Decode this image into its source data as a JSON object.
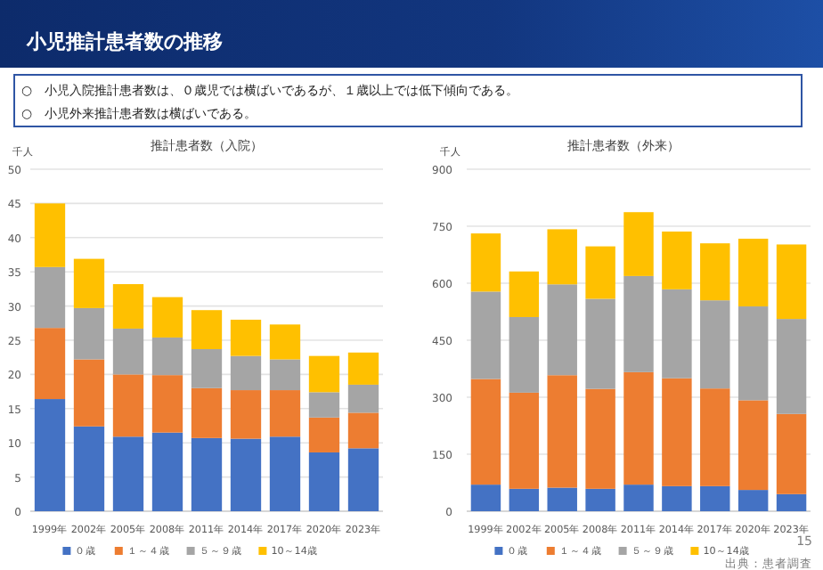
{
  "chart_data": [
    {
      "type": "bar",
      "title": "推計患者数（入院）",
      "ylabel": "千人",
      "categories": [
        "1999年",
        "2002年",
        "2005年",
        "2008年",
        "2011年",
        "2014年",
        "2017年",
        "2020年",
        "2023年"
      ],
      "stacked": true,
      "ylim": [
        0,
        50
      ],
      "yticks": [
        0,
        5,
        10,
        15,
        20,
        25,
        30,
        35,
        40,
        45,
        50
      ],
      "grid": "y",
      "legend": "bottom",
      "series": [
        {
          "name": "０歳",
          "color": "#4472c4",
          "values": [
            16.4,
            12.4,
            10.9,
            11.5,
            10.7,
            10.6,
            10.9,
            8.6,
            9.2
          ]
        },
        {
          "name": "１～４歳",
          "color": "#ed7d31",
          "values": [
            10.4,
            9.8,
            9.1,
            8.4,
            7.3,
            7.1,
            6.8,
            5.1,
            5.2
          ]
        },
        {
          "name": "５～９歳",
          "color": "#a5a5a5",
          "values": [
            8.9,
            7.5,
            6.7,
            5.5,
            5.7,
            5.0,
            4.5,
            3.7,
            4.1
          ]
        },
        {
          "name": "10～14歳",
          "color": "#ffc000",
          "values": [
            9.3,
            7.2,
            6.5,
            5.9,
            5.7,
            5.3,
            5.1,
            5.3,
            4.7
          ]
        }
      ],
      "annotations": [
        "小児推計患者数の推移",
        "○　小児入院推計患者数は、０歳児では横ばいであるが、１歳以上では低下傾向である。",
        "○　小児外来推計患者数は横ばいである。"
      ]
    },
    {
      "type": "bar",
      "title": "推計患者数（外来）",
      "ylabel": "千人",
      "categories": [
        "1999年",
        "2002年",
        "2005年",
        "2008年",
        "2011年",
        "2014年",
        "2017年",
        "2020年",
        "2023年"
      ],
      "stacked": true,
      "ylim": [
        0,
        900
      ],
      "yticks": [
        0,
        150,
        300,
        450,
        600,
        750,
        900
      ],
      "grid": "y",
      "legend": "bottom",
      "series": [
        {
          "name": "０歳",
          "color": "#4472c4",
          "values": [
            70,
            59,
            62,
            59,
            70,
            66,
            66,
            56,
            45
          ]
        },
        {
          "name": "１～４歳",
          "color": "#ed7d31",
          "values": [
            278,
            253,
            296,
            263,
            296,
            284,
            257,
            236,
            211
          ]
        },
        {
          "name": "５～９歳",
          "color": "#a5a5a5",
          "values": [
            230,
            199,
            239,
            237,
            253,
            234,
            232,
            247,
            250
          ]
        },
        {
          "name": "10～14歳",
          "color": "#ffc000",
          "values": [
            153,
            120,
            145,
            138,
            168,
            152,
            150,
            178,
            196
          ]
        }
      ],
      "annotations": [
        "15",
        "出典：患者調査"
      ]
    }
  ]
}
